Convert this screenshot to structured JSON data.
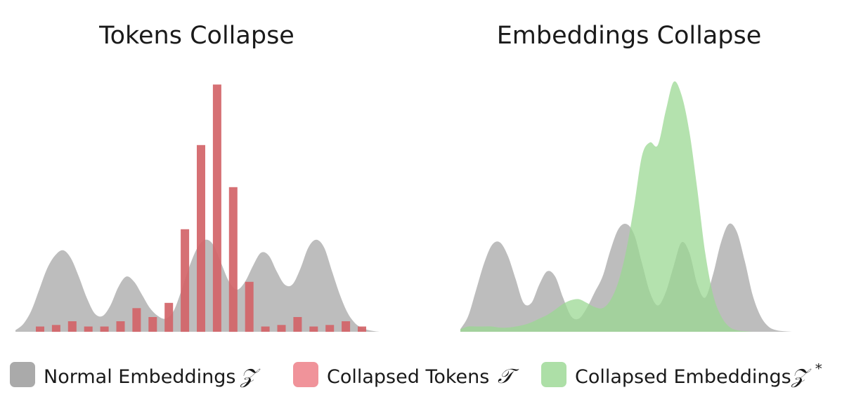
{
  "chart_data": [
    {
      "type": "bar",
      "title": "Tokens Collapse",
      "background_series": {
        "name": "Normal Embeddings",
        "type": "area",
        "x": [
          0,
          0.5,
          1,
          1.5,
          2,
          2.5,
          3,
          3.5,
          4,
          4.5,
          5,
          5.5,
          6,
          6.5,
          7,
          7.5,
          8,
          8.5,
          9,
          9.5,
          10,
          10.5,
          11,
          11.5,
          12,
          12.5,
          13,
          13.5,
          14,
          14.5,
          15,
          15.5,
          16,
          16.5,
          17,
          17.5,
          18,
          18.5,
          19,
          19.5,
          20,
          20.5,
          21,
          21.5,
          22,
          22.5,
          23
        ],
        "values": [
          0.3,
          1.5,
          4,
          8,
          12,
          14.5,
          15.5,
          14,
          10.5,
          6.5,
          3.5,
          3,
          5,
          8.5,
          10.5,
          9.5,
          7,
          4.5,
          3,
          2.5,
          4,
          8,
          12.5,
          16,
          17.5,
          16.5,
          13,
          9.5,
          8,
          9.5,
          12.5,
          15,
          14.5,
          11.5,
          9,
          9,
          12,
          16,
          17.5,
          16,
          11.5,
          7,
          3.5,
          1.5,
          0.6,
          0.2,
          0
        ]
      },
      "series": [
        {
          "name": "Collapsed Tokens",
          "categories": [
            1,
            2,
            3,
            4,
            5,
            6,
            7,
            8,
            9,
            10,
            11,
            12,
            13,
            14,
            15,
            16,
            17,
            18,
            19,
            20,
            21,
            22
          ],
          "values": [
            1,
            1.3,
            2,
            1,
            1,
            2,
            4.5,
            2.8,
            5.5,
            19.5,
            35.5,
            47,
            27.5,
            9.5,
            1,
            1.3,
            2.8,
            1,
            1.3,
            2,
            1,
            0
          ]
        }
      ],
      "ylim": [
        0,
        48
      ]
    },
    {
      "type": "area",
      "title": "Embeddings Collapse",
      "series": [
        {
          "name": "Normal Embeddings",
          "x": [
            0,
            0.5,
            1,
            1.5,
            2,
            2.5,
            3,
            3.5,
            4,
            4.5,
            5,
            5.5,
            6,
            6.5,
            7,
            7.5,
            8,
            8.5,
            9,
            9.5,
            10,
            10.5,
            11,
            11.5,
            12,
            12.5,
            13,
            13.5,
            14,
            14.5,
            15,
            15.5,
            16,
            16.5,
            17,
            17.5,
            18,
            18.5,
            19,
            19.5,
            20,
            20.5,
            21,
            21.5,
            22,
            22.5,
            23
          ],
          "values": [
            0.5,
            3,
            8,
            13,
            16.5,
            17,
            14.5,
            10,
            5.5,
            5.5,
            9,
            11.5,
            10.5,
            6.5,
            3,
            2.5,
            4.5,
            7.5,
            10.5,
            15.5,
            19.5,
            20.5,
            18.5,
            13,
            7.5,
            5,
            7.5,
            12.5,
            17,
            15,
            9,
            6.5,
            11,
            17,
            20.5,
            19,
            13.5,
            7,
            3,
            1,
            0.3,
            0.1,
            0,
            0,
            0,
            0,
            0
          ]
        },
        {
          "name": "Collapsed Embeddings",
          "x": [
            0,
            0.5,
            1,
            1.5,
            2,
            2.5,
            3,
            3.5,
            4,
            4.5,
            5,
            5.5,
            6,
            6.5,
            7,
            7.5,
            8,
            8.5,
            9,
            9.5,
            10,
            10.5,
            11,
            11.5,
            12,
            12.5,
            13,
            13.5,
            14,
            14.5,
            15,
            15.5,
            16,
            16.5,
            17,
            17.5,
            18,
            18.5,
            19,
            19.5,
            20,
            20.5,
            21,
            21.5,
            22,
            22.5,
            23
          ],
          "values": [
            0.5,
            1,
            1,
            1,
            1,
            0.8,
            0.8,
            1,
            1.3,
            1.8,
            2.5,
            3.2,
            4.2,
            5.3,
            6,
            6.2,
            5.5,
            4.7,
            4.5,
            6,
            9.5,
            15.5,
            24,
            33.5,
            36,
            35.5,
            42,
            47.5,
            45,
            38,
            27,
            15,
            7,
            3,
            1,
            0.3,
            0.1,
            0,
            0,
            0,
            0,
            0,
            0,
            0,
            0,
            0,
            0
          ]
        }
      ],
      "ylim": [
        0,
        48
      ]
    }
  ],
  "legend": {
    "items": [
      {
        "label": "Normal Embeddings",
        "symbol": "𝒵",
        "superscript": "",
        "color": "#aaaaaa"
      },
      {
        "label": "Collapsed Tokens",
        "symbol": "𝒯",
        "superscript": "",
        "color": "#f0939a"
      },
      {
        "label": "Collapsed Embeddings",
        "symbol": "𝒵",
        "superscript": "*",
        "color": "#addfa7"
      }
    ]
  },
  "colors": {
    "normal": "#bdbdbd",
    "token_bar": "#d26468",
    "collapsed": "#9bd893"
  }
}
